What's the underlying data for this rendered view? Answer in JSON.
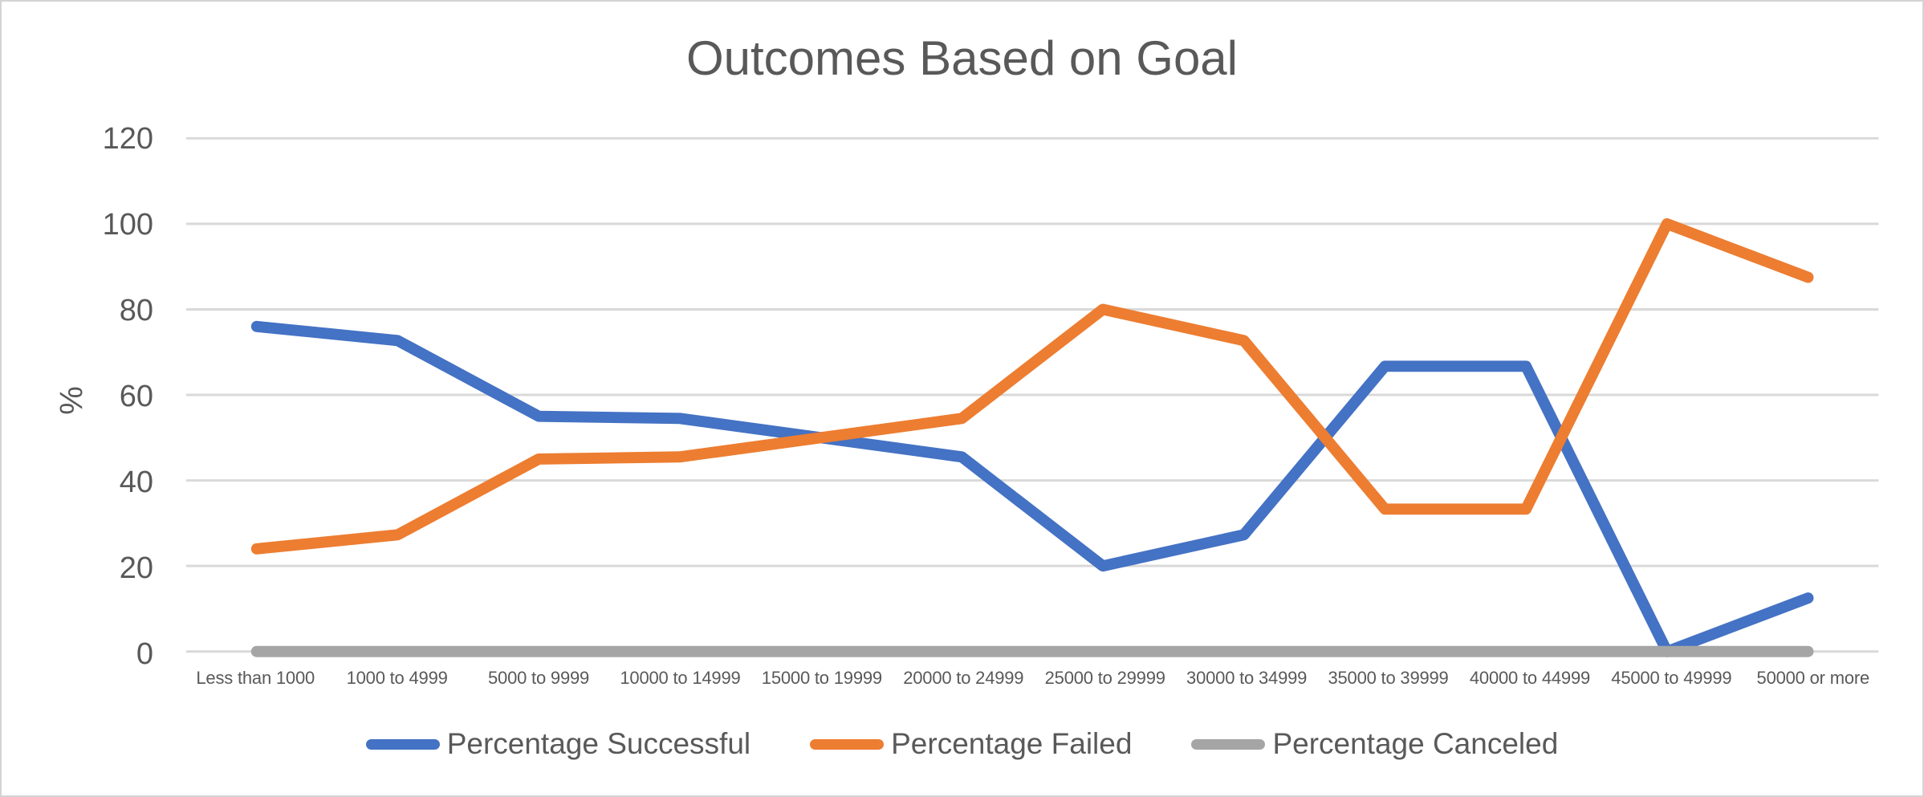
{
  "chart_data": {
    "type": "line",
    "title": "Outcomes Based on Goal",
    "xlabel": "",
    "ylabel": "%",
    "ylim": [
      0,
      120
    ],
    "yticks": [
      0,
      20,
      40,
      60,
      80,
      100,
      120
    ],
    "grid": true,
    "legend_position": "bottom",
    "categories": [
      "Less than 1000",
      "1000 to 4999",
      "5000 to 9999",
      "10000 to 14999",
      "15000 to 19999",
      "20000 to 24999",
      "25000 to 29999",
      "30000 to 34999",
      "35000 to 39999",
      "40000 to 44999",
      "45000 to 49999",
      "50000 or more"
    ],
    "series": [
      {
        "name": "Percentage Successful",
        "color": "#4472C4",
        "values": [
          76,
          72.7,
          55,
          54.5,
          50,
          45.5,
          20,
          27.3,
          66.7,
          66.7,
          0,
          12.5
        ]
      },
      {
        "name": "Percentage Failed",
        "color": "#ED7D31",
        "values": [
          24,
          27.3,
          45,
          45.5,
          50,
          54.5,
          80,
          72.7,
          33.3,
          33.3,
          100,
          87.5
        ]
      },
      {
        "name": "Percentage Canceled",
        "color": "#A5A5A5",
        "values": [
          0,
          0,
          0,
          0,
          0,
          0,
          0,
          0,
          0,
          0,
          0,
          0
        ]
      }
    ]
  },
  "colors": {
    "text": "#595959",
    "gridline": "#D9D9D9",
    "frame_border": "#D4D4D4",
    "background": "#FFFFFF"
  }
}
